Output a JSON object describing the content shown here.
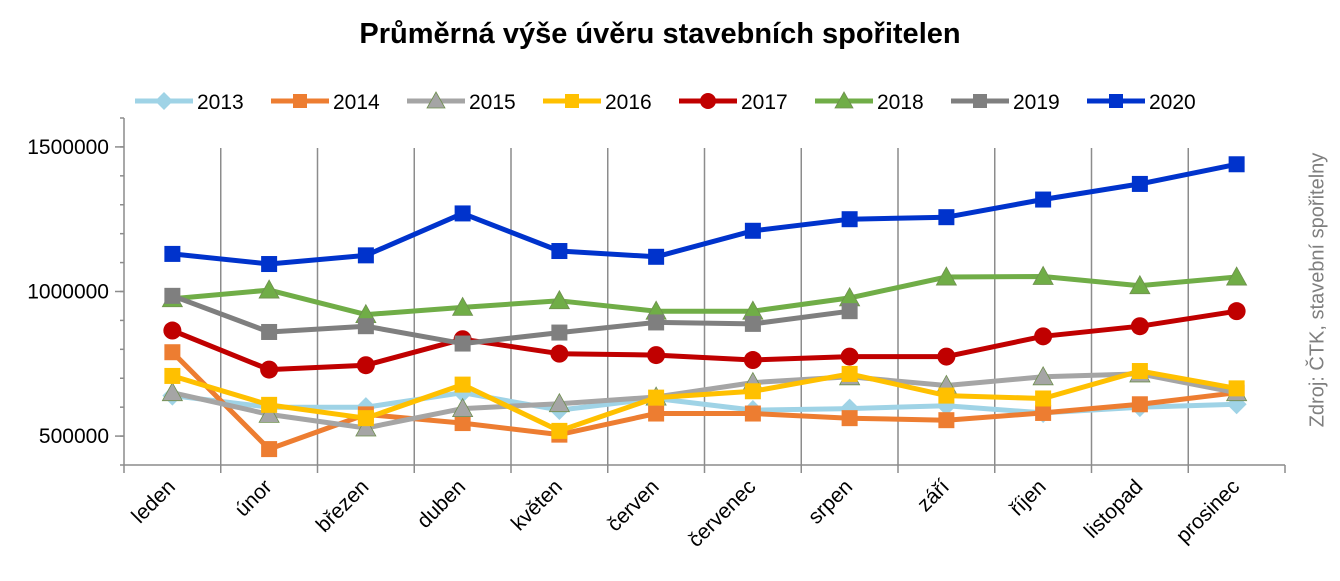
{
  "chart_data": {
    "type": "line",
    "title": "Průměrná výše úvěru stavebních spořitelen",
    "source": "Zdroj: ČTK, stavební spořitelny",
    "categories": [
      "leden",
      "únor",
      "březen",
      "duben",
      "květen",
      "červen",
      "červenec",
      "srpen",
      "září",
      "říjen",
      "listopad",
      "prosinec"
    ],
    "ylim": [
      400000,
      1600000
    ],
    "yticks": [
      500000,
      1000000,
      1500000
    ],
    "ytick_labels": [
      "500000",
      "1000000",
      "1500000"
    ],
    "grid": "vertical",
    "legend": "top",
    "series": [
      {
        "name": "2013",
        "color": "#9fd3e6",
        "marker": "diamond",
        "values": [
          640000,
          600000,
          600000,
          650000,
          590000,
          630000,
          590000,
          595000,
          605000,
          580000,
          600000,
          610000
        ]
      },
      {
        "name": "2014",
        "color": "#ed7d31",
        "marker": "square",
        "values": [
          790000,
          455000,
          575000,
          545000,
          505000,
          578000,
          578000,
          562000,
          555000,
          580000,
          610000,
          650000
        ]
      },
      {
        "name": "2015",
        "color": "#a5a5a5",
        "marker": "triangle",
        "values": [
          650000,
          575000,
          528000,
          595000,
          612000,
          635000,
          685000,
          705000,
          675000,
          705000,
          715000,
          650000
        ]
      },
      {
        "name": "2016",
        "color": "#ffc000",
        "marker": "square",
        "values": [
          708000,
          608000,
          562000,
          678000,
          518000,
          633000,
          655000,
          715000,
          640000,
          630000,
          725000,
          665000
        ]
      },
      {
        "name": "2017",
        "color": "#c00000",
        "marker": "circle",
        "values": [
          865000,
          730000,
          745000,
          835000,
          785000,
          780000,
          763000,
          775000,
          775000,
          845000,
          880000,
          932000
        ]
      },
      {
        "name": "2018",
        "color": "#70ad47",
        "marker": "triangle",
        "values": [
          975000,
          1005000,
          920000,
          945000,
          968000,
          932000,
          932000,
          978000,
          1050000,
          1052000,
          1020000,
          1050000
        ]
      },
      {
        "name": "2019",
        "color": "#7f7f7f",
        "marker": "square",
        "values": [
          985000,
          860000,
          880000,
          820000,
          858000,
          893000,
          888000,
          932000,
          null,
          null,
          null,
          null
        ]
      },
      {
        "name": "2020",
        "color": "#0033cc",
        "marker": "square",
        "values": [
          1130000,
          1095000,
          1125000,
          1270000,
          1140000,
          1120000,
          1210000,
          1250000,
          1257000,
          1318000,
          1372000,
          1440000
        ]
      }
    ]
  }
}
